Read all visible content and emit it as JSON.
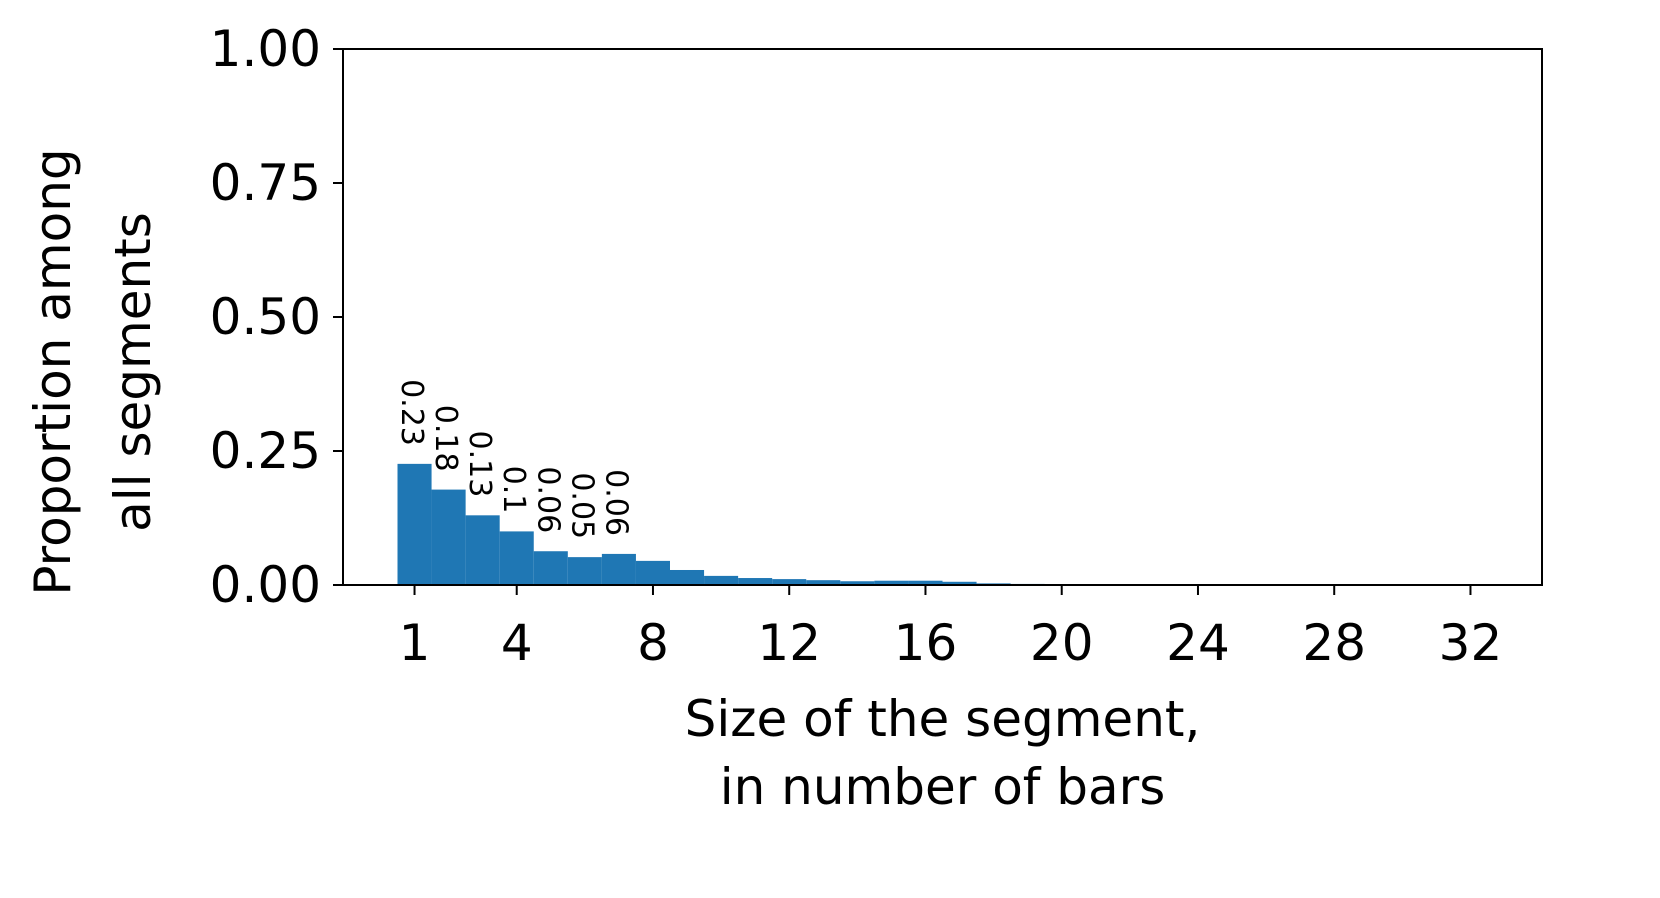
{
  "chart_data": {
    "type": "bar",
    "x": [
      1,
      2,
      3,
      4,
      5,
      6,
      7,
      8,
      9,
      10,
      11,
      12,
      13,
      14,
      15,
      16,
      17,
      18,
      19,
      20,
      21,
      22,
      23,
      24,
      25,
      26,
      27,
      28,
      29,
      30,
      31,
      32
    ],
    "values": [
      0.226,
      0.178,
      0.13,
      0.1,
      0.063,
      0.052,
      0.058,
      0.045,
      0.028,
      0.017,
      0.013,
      0.011,
      0.009,
      0.007,
      0.008,
      0.008,
      0.006,
      0.003,
      0.002,
      0.001,
      0.0008,
      0.0006,
      0.0005,
      0.0004,
      0.0003,
      0.0003,
      0.0002,
      0.0002,
      0.0002,
      0.0001,
      0.0001,
      0.0001
    ],
    "value_labels": [
      "0.23",
      "0.18",
      "0.13",
      "0.1",
      "0.06",
      "0.05",
      "0.06",
      null,
      null,
      null,
      null,
      null,
      null,
      null,
      null,
      null,
      null,
      null,
      null,
      null,
      null,
      null,
      null,
      null,
      null,
      null,
      null,
      null,
      null,
      null,
      null,
      null
    ],
    "color": "#1f77b4",
    "xlabel": [
      "Size of the segment,",
      "in number of bars"
    ],
    "ylabel": [
      "Proportion among",
      "all segments"
    ],
    "xlim": [
      -1.1,
      34.1
    ],
    "xticks": [
      1,
      4,
      8,
      12,
      16,
      20,
      24,
      28,
      32
    ],
    "ylim": [
      0,
      1
    ],
    "yticks": [
      {
        "value": 0,
        "label": "0.00"
      },
      {
        "value": 0.25,
        "label": "0.25"
      },
      {
        "value": 0.5,
        "label": "0.50"
      },
      {
        "value": 0.75,
        "label": "0.75"
      },
      {
        "value": 1,
        "label": "1.00"
      }
    ],
    "grid": false
  }
}
